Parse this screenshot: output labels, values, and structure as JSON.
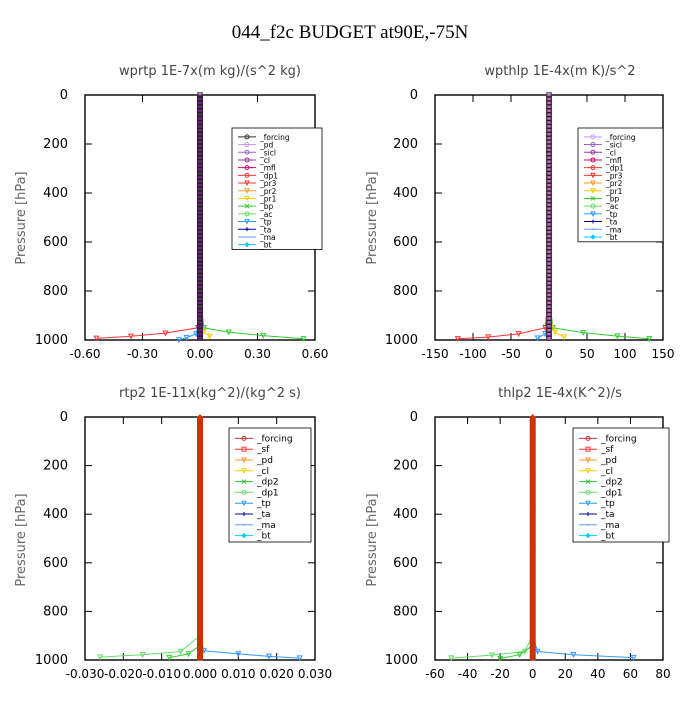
{
  "figure": {
    "title": "044_f2c  BUDGET at90E,-75N"
  },
  "chart_data": [
    {
      "type": "line",
      "title": "wprtp   1E-7x(m kg)/(s^2 kg)",
      "ylabel": "Pressure [hPa]",
      "xlim": [
        -0.6,
        0.6
      ],
      "ylim": [
        1000,
        0
      ],
      "xticks": [
        "-0.60",
        "-0.30",
        "0.00",
        "0.30",
        "0.60"
      ],
      "yticks": [
        "0",
        "200",
        "400",
        "600",
        "800",
        "1000"
      ],
      "grid": false,
      "legend_position": "top-right",
      "legend": [
        {
          "name": "_forcing",
          "color": "#333333",
          "marker": "circle"
        },
        {
          "name": "_pd",
          "color": "#cc99ff",
          "marker": "circle"
        },
        {
          "name": "_sicl",
          "color": "#9966cc",
          "marker": "circle"
        },
        {
          "name": "_cl",
          "color": "#993399",
          "marker": "circle"
        },
        {
          "name": "_mfl",
          "color": "#cc0066",
          "marker": "circle"
        },
        {
          "name": "_dp1",
          "color": "#ff3333",
          "marker": "circle"
        },
        {
          "name": "_pr3",
          "color": "#ff3333",
          "marker": "triangle"
        },
        {
          "name": "_pr2",
          "color": "#ff9933",
          "marker": "triangle"
        },
        {
          "name": "_pr1",
          "color": "#ffcc00",
          "marker": "triangle"
        },
        {
          "name": "_bp",
          "color": "#33cc33",
          "marker": "x"
        },
        {
          "name": "_ac",
          "color": "#66dd66",
          "marker": "circle"
        },
        {
          "name": "_tp",
          "color": "#3399ff",
          "marker": "triangle"
        },
        {
          "name": "_ta",
          "color": "#000099",
          "marker": "plus"
        },
        {
          "name": "_ma",
          "color": "#6699ff",
          "marker": "dash"
        },
        {
          "name": "_bt",
          "color": "#00ccff",
          "marker": "diamond"
        }
      ],
      "series": [
        {
          "color": "#ff3333",
          "points": [
            [
              0,
              0
            ],
            [
              0,
              800
            ],
            [
              -0.01,
              950
            ],
            [
              -0.18,
              972
            ],
            [
              -0.36,
              985
            ],
            [
              -0.54,
              993
            ]
          ]
        },
        {
          "color": "#33cc33",
          "points": [
            [
              0,
              0
            ],
            [
              0,
              800
            ],
            [
              0.02,
              950
            ],
            [
              0.15,
              968
            ],
            [
              0.33,
              982
            ],
            [
              0.54,
              995
            ]
          ]
        },
        {
          "color": "#3399ff",
          "points": [
            [
              0,
              900
            ],
            [
              -0.02,
              975
            ],
            [
              -0.07,
              990
            ],
            [
              -0.11,
              1000
            ]
          ]
        },
        {
          "color": "#ffcc00",
          "points": [
            [
              0,
              900
            ],
            [
              0.02,
              965
            ],
            [
              0.05,
              985
            ]
          ]
        }
      ],
      "column_color": "#7a1f8a"
    },
    {
      "type": "line",
      "title": "wpthlp   1E-4x(m K)/s^2",
      "ylabel": "Pressure [hPa]",
      "xlim": [
        -150,
        150
      ],
      "ylim": [
        1000,
        0
      ],
      "xticks": [
        "-150",
        "-100",
        "-50",
        "0",
        "50",
        "100",
        "150"
      ],
      "yticks": [
        "0",
        "200",
        "400",
        "600",
        "800",
        "1000"
      ],
      "grid": false,
      "legend_position": "top-right",
      "legend": [
        {
          "name": "_forcing",
          "color": "#cc99ff",
          "marker": "circle"
        },
        {
          "name": "_sicl",
          "color": "#9966cc",
          "marker": "circle"
        },
        {
          "name": "_cl",
          "color": "#993399",
          "marker": "circle"
        },
        {
          "name": "_mfl",
          "color": "#cc0066",
          "marker": "circle"
        },
        {
          "name": "_dp1",
          "color": "#ff3333",
          "marker": "circle"
        },
        {
          "name": "_pr3",
          "color": "#ff3333",
          "marker": "triangle"
        },
        {
          "name": "_pr2",
          "color": "#ff9933",
          "marker": "triangle"
        },
        {
          "name": "_pr1",
          "color": "#ffcc00",
          "marker": "triangle"
        },
        {
          "name": "_bp",
          "color": "#33cc33",
          "marker": "x"
        },
        {
          "name": "_ac",
          "color": "#66dd66",
          "marker": "circle"
        },
        {
          "name": "_tp",
          "color": "#3399ff",
          "marker": "triangle"
        },
        {
          "name": "_ta",
          "color": "#000099",
          "marker": "plus"
        },
        {
          "name": "_ma",
          "color": "#6699ff",
          "marker": "dash"
        },
        {
          "name": "_bt",
          "color": "#00ccff",
          "marker": "diamond"
        }
      ],
      "series": [
        {
          "color": "#ff3333",
          "points": [
            [
              0,
              0
            ],
            [
              0,
              800
            ],
            [
              -5,
              950
            ],
            [
              -40,
              975
            ],
            [
              -80,
              988
            ],
            [
              -120,
              995
            ]
          ]
        },
        {
          "color": "#33cc33",
          "points": [
            [
              0,
              0
            ],
            [
              0,
              800
            ],
            [
              5,
              950
            ],
            [
              45,
              970
            ],
            [
              90,
              984
            ],
            [
              132,
              995
            ]
          ]
        },
        {
          "color": "#3399ff",
          "points": [
            [
              0,
              900
            ],
            [
              -5,
              975
            ],
            [
              -15,
              992
            ]
          ]
        },
        {
          "color": "#ffcc00",
          "points": [
            [
              0,
              900
            ],
            [
              8,
              968
            ],
            [
              20,
              988
            ]
          ]
        }
      ],
      "column_color": "#cc66cc"
    },
    {
      "type": "line",
      "title": "rtp2   1E-11x(kg^2)/(kg^2 s)",
      "ylabel": "Pressure [hPa]",
      "xlim": [
        -0.03,
        0.03
      ],
      "ylim": [
        1000,
        0
      ],
      "xticks": [
        "-0.030",
        "-0.020",
        "-0.010",
        "0.000",
        "0.010",
        "0.020",
        "0.030"
      ],
      "yticks": [
        "0",
        "200",
        "400",
        "600",
        "800",
        "1000"
      ],
      "grid": false,
      "legend_position": "top-right",
      "legend": [
        {
          "name": "_forcing",
          "color": "#cc3333",
          "marker": "circle"
        },
        {
          "name": "_sf",
          "color": "#ff3333",
          "marker": "square"
        },
        {
          "name": "_pd",
          "color": "#ff9933",
          "marker": "triangle"
        },
        {
          "name": "_cl",
          "color": "#ffcc00",
          "marker": "triangle"
        },
        {
          "name": "_dp2",
          "color": "#33cc33",
          "marker": "x"
        },
        {
          "name": "_dp1",
          "color": "#66dd66",
          "marker": "circle"
        },
        {
          "name": "_tp",
          "color": "#3399ff",
          "marker": "triangle"
        },
        {
          "name": "_ta",
          "color": "#000099",
          "marker": "plus"
        },
        {
          "name": "_ma",
          "color": "#6699ff",
          "marker": "dash"
        },
        {
          "name": "_bt",
          "color": "#00ccff",
          "marker": "diamond"
        }
      ],
      "series": [
        {
          "color": "#66dd66",
          "points": [
            [
              0,
              0
            ],
            [
              0,
              900
            ],
            [
              -0.005,
              965
            ],
            [
              -0.015,
              978
            ],
            [
              -0.026,
              988
            ]
          ]
        },
        {
          "color": "#3399ff",
          "points": [
            [
              0,
              900
            ],
            [
              0.001,
              962
            ],
            [
              0.01,
              975
            ],
            [
              0.018,
              985
            ],
            [
              0.026,
              992
            ]
          ]
        },
        {
          "color": "#33cc33",
          "points": [
            [
              0,
              940
            ],
            [
              -0.003,
              975
            ],
            [
              -0.008,
              990
            ]
          ]
        }
      ],
      "column_color": "#cc3300"
    },
    {
      "type": "line",
      "title": "thlp2   1E-4x(K^2)/s",
      "ylabel": "Pressure [hPa]",
      "xlim": [
        -60,
        80
      ],
      "ylim": [
        1000,
        0
      ],
      "xticks": [
        "-60",
        "-40",
        "-20",
        "0",
        "20",
        "40",
        "60",
        "80"
      ],
      "yticks": [
        "0",
        "200",
        "400",
        "600",
        "800",
        "1000"
      ],
      "grid": false,
      "legend_position": "top-right",
      "legend": [
        {
          "name": "_forcing",
          "color": "#cc3333",
          "marker": "circle"
        },
        {
          "name": "_sf",
          "color": "#ff3333",
          "marker": "square"
        },
        {
          "name": "_pd",
          "color": "#ff9933",
          "marker": "triangle"
        },
        {
          "name": "_cl",
          "color": "#ffcc00",
          "marker": "triangle"
        },
        {
          "name": "_dp2",
          "color": "#33cc33",
          "marker": "x"
        },
        {
          "name": "_dp1",
          "color": "#66dd66",
          "marker": "circle"
        },
        {
          "name": "_tp",
          "color": "#3399ff",
          "marker": "triangle"
        },
        {
          "name": "_ta",
          "color": "#000099",
          "marker": "plus"
        },
        {
          "name": "_ma",
          "color": "#6699ff",
          "marker": "dash"
        },
        {
          "name": "_bt",
          "color": "#00ccff",
          "marker": "diamond"
        }
      ],
      "series": [
        {
          "color": "#66dd66",
          "points": [
            [
              0,
              0
            ],
            [
              0,
              900
            ],
            [
              -5,
              965
            ],
            [
              -25,
              980
            ],
            [
              -50,
              992
            ]
          ]
        },
        {
          "color": "#3399ff",
          "points": [
            [
              0,
              900
            ],
            [
              3,
              965
            ],
            [
              25,
              978
            ],
            [
              62,
              990
            ]
          ]
        },
        {
          "color": "#33cc33",
          "points": [
            [
              0,
              940
            ],
            [
              -8,
              978
            ],
            [
              -20,
              994
            ]
          ]
        }
      ],
      "column_color": "#cc3300"
    }
  ]
}
